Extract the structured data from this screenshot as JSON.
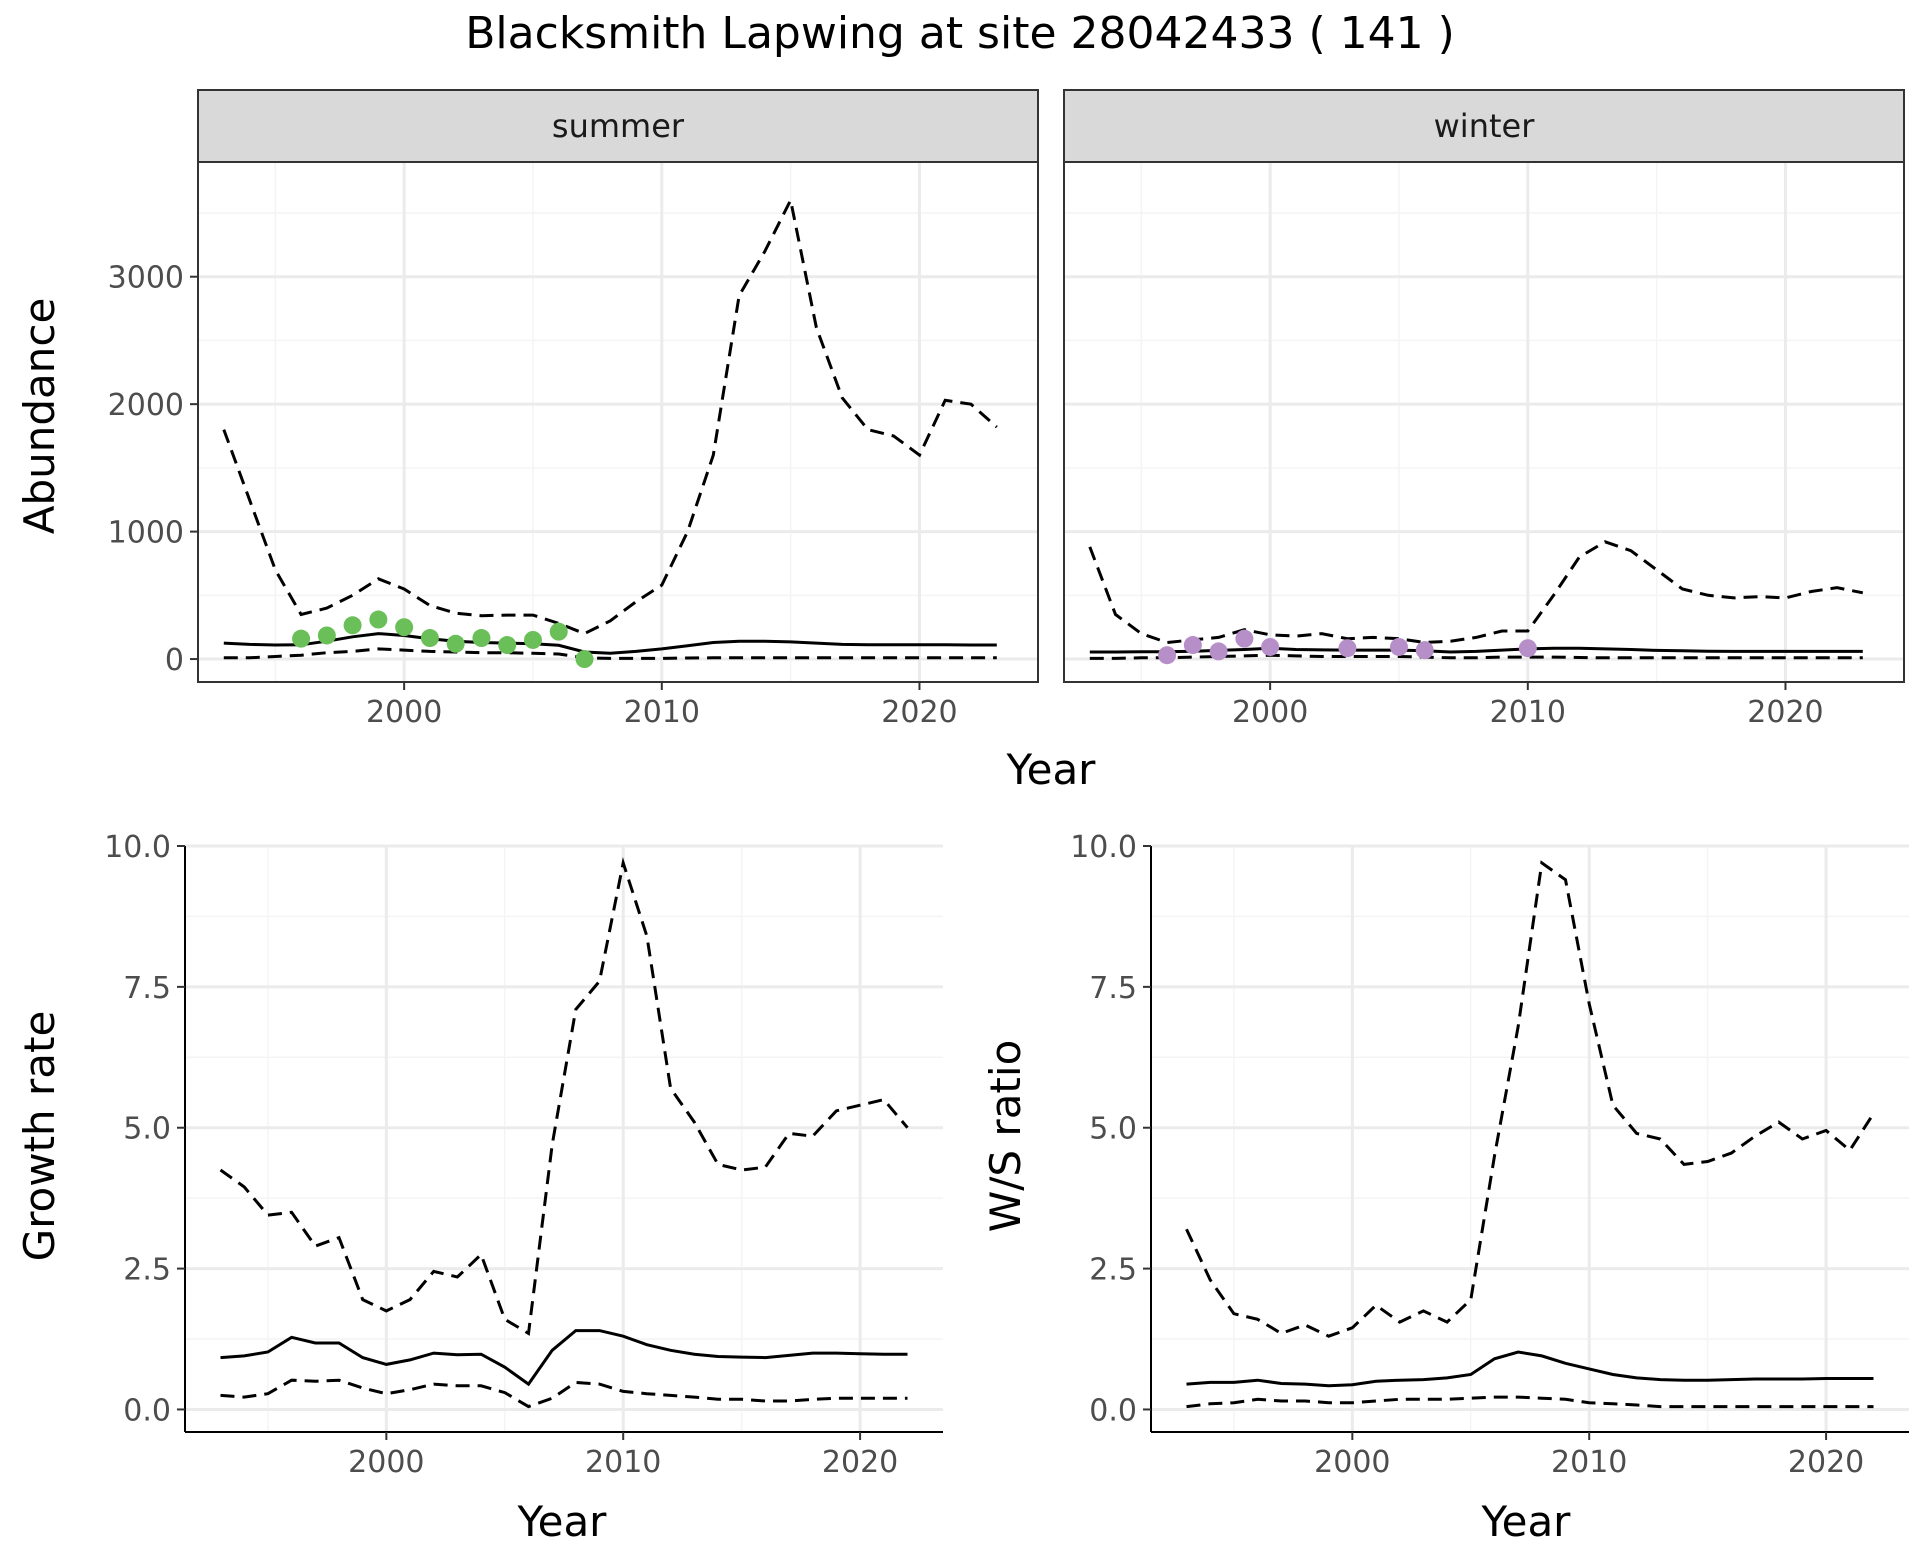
{
  "title": "Blacksmith Lapwing at site 28042433 ( 141 )",
  "colors": {
    "summer_points": "#6abf59",
    "winter_points": "#b68fc9",
    "lines": "#000000"
  },
  "chart_data": [
    {
      "id": "abundance",
      "type": "line",
      "ylabel": "Abundance",
      "xlabel": "Year",
      "xlim": [
        1992,
        2024.6
      ],
      "ylim": [
        -180,
        3900
      ],
      "xticks": [
        2000,
        2010,
        2020
      ],
      "yticks": [
        0,
        1000,
        2000,
        3000
      ],
      "ytick_labels": [
        "0",
        "1000",
        "2000",
        "3000"
      ],
      "facets": [
        {
          "label": "summer",
          "years": [
            1993,
            1994,
            1995,
            1996,
            1997,
            1998,
            1999,
            2000,
            2001,
            2002,
            2003,
            2004,
            2005,
            2006,
            2007,
            2008,
            2009,
            2010,
            2011,
            2012,
            2013,
            2014,
            2015,
            2016,
            2017,
            2018,
            2019,
            2020,
            2021,
            2022,
            2023
          ],
          "mean": [
            125,
            115,
            110,
            112,
            140,
            175,
            200,
            185,
            160,
            140,
            130,
            125,
            120,
            108,
            55,
            45,
            60,
            80,
            105,
            130,
            140,
            140,
            135,
            125,
            115,
            112,
            112,
            112,
            112,
            110,
            110
          ],
          "upper": [
            1800,
            1250,
            700,
            350,
            400,
            500,
            630,
            550,
            420,
            360,
            340,
            345,
            345,
            280,
            200,
            300,
            450,
            580,
            1000,
            1600,
            2850,
            3200,
            3600,
            2600,
            2050,
            1800,
            1750,
            1600,
            2030,
            2000,
            1820
          ],
          "lower": [
            10,
            10,
            20,
            30,
            50,
            60,
            80,
            70,
            60,
            55,
            50,
            50,
            45,
            40,
            10,
            5,
            5,
            5,
            8,
            10,
            10,
            10,
            10,
            10,
            10,
            10,
            10,
            10,
            10,
            10,
            10
          ],
          "obs_years": [
            1996,
            1997,
            1998,
            1999,
            2000,
            2001,
            2002,
            2003,
            2004,
            2005,
            2006,
            2007
          ],
          "obs_values": [
            160,
            185,
            265,
            310,
            250,
            165,
            120,
            165,
            110,
            150,
            215,
            0
          ]
        },
        {
          "label": "winter",
          "years": [
            1993,
            1994,
            1995,
            1996,
            1997,
            1998,
            1999,
            2000,
            2001,
            2002,
            2003,
            2004,
            2005,
            2006,
            2007,
            2008,
            2009,
            2010,
            2011,
            2012,
            2013,
            2014,
            2015,
            2016,
            2017,
            2018,
            2019,
            2020,
            2021,
            2022,
            2023
          ],
          "mean": [
            55,
            55,
            58,
            58,
            62,
            68,
            75,
            85,
            75,
            72,
            70,
            70,
            70,
            65,
            55,
            60,
            70,
            80,
            85,
            85,
            80,
            75,
            68,
            65,
            62,
            60,
            60,
            60,
            60,
            60,
            60
          ],
          "upper": [
            880,
            350,
            200,
            130,
            150,
            170,
            230,
            190,
            180,
            200,
            160,
            170,
            160,
            130,
            140,
            170,
            220,
            220,
            500,
            800,
            920,
            850,
            700,
            550,
            500,
            480,
            490,
            480,
            530,
            560,
            520
          ],
          "lower": [
            5,
            5,
            10,
            10,
            15,
            20,
            25,
            30,
            25,
            20,
            20,
            20,
            20,
            15,
            10,
            10,
            15,
            15,
            15,
            12,
            10,
            10,
            10,
            10,
            10,
            10,
            10,
            10,
            10,
            10,
            10
          ],
          "obs_years": [
            1996,
            1997,
            1998,
            1999,
            2000,
            2003,
            2005,
            2006,
            2010
          ],
          "obs_values": [
            30,
            110,
            60,
            160,
            95,
            85,
            95,
            70,
            85
          ]
        }
      ]
    },
    {
      "id": "growth",
      "type": "line",
      "ylabel": "Growth rate",
      "xlabel": "Year",
      "xlim": [
        1991.5,
        2023.5
      ],
      "ylim": [
        -0.4,
        10.0
      ],
      "xticks": [
        2000,
        2010,
        2020
      ],
      "yticks": [
        0,
        2.5,
        5,
        7.5,
        10
      ],
      "ytick_labels": [
        "0.0",
        "2.5",
        "5.0",
        "7.5",
        "10.0"
      ],
      "years": [
        1993,
        1994,
        1995,
        1996,
        1997,
        1998,
        1999,
        2000,
        2001,
        2002,
        2003,
        2004,
        2005,
        2006,
        2007,
        2008,
        2009,
        2010,
        2011,
        2012,
        2013,
        2014,
        2015,
        2016,
        2017,
        2018,
        2019,
        2020,
        2021,
        2022
      ],
      "mean": [
        0.92,
        0.95,
        1.02,
        1.28,
        1.18,
        1.18,
        0.92,
        0.8,
        0.88,
        1.0,
        0.97,
        0.98,
        0.75,
        0.45,
        1.05,
        1.4,
        1.4,
        1.3,
        1.15,
        1.05,
        0.98,
        0.94,
        0.93,
        0.92,
        0.96,
        1.0,
        1.0,
        0.99,
        0.98,
        0.98
      ],
      "upper": [
        4.25,
        3.95,
        3.45,
        3.5,
        2.9,
        3.05,
        1.95,
        1.75,
        1.95,
        2.45,
        2.35,
        2.75,
        1.6,
        1.35,
        4.7,
        7.1,
        7.6,
        9.7,
        8.4,
        5.7,
        5.1,
        4.35,
        4.25,
        4.3,
        4.9,
        4.85,
        5.3,
        5.4,
        5.5,
        5.0
      ],
      "lower": [
        0.25,
        0.22,
        0.28,
        0.52,
        0.5,
        0.52,
        0.38,
        0.28,
        0.35,
        0.45,
        0.42,
        0.42,
        0.3,
        0.05,
        0.2,
        0.48,
        0.45,
        0.32,
        0.28,
        0.25,
        0.22,
        0.18,
        0.18,
        0.15,
        0.15,
        0.18,
        0.2,
        0.2,
        0.2,
        0.2
      ]
    },
    {
      "id": "ws_ratio",
      "type": "line",
      "ylabel": "W/S ratio",
      "xlabel": "Year",
      "xlim": [
        1991.5,
        2023.5
      ],
      "ylim": [
        -0.4,
        10.0
      ],
      "xticks": [
        2000,
        2010,
        2020
      ],
      "yticks": [
        0,
        2.5,
        5,
        7.5,
        10
      ],
      "ytick_labels": [
        "0.0",
        "2.5",
        "5.0",
        "7.5",
        "10.0"
      ],
      "years": [
        1993,
        1994,
        1995,
        1996,
        1997,
        1998,
        1999,
        2000,
        2001,
        2002,
        2003,
        2004,
        2005,
        2006,
        2007,
        2008,
        2009,
        2010,
        2011,
        2012,
        2013,
        2014,
        2015,
        2016,
        2017,
        2018,
        2019,
        2020,
        2021,
        2022
      ],
      "mean": [
        0.45,
        0.48,
        0.48,
        0.52,
        0.46,
        0.45,
        0.42,
        0.44,
        0.5,
        0.52,
        0.53,
        0.56,
        0.62,
        0.9,
        1.02,
        0.95,
        0.82,
        0.72,
        0.62,
        0.56,
        0.53,
        0.52,
        0.52,
        0.53,
        0.54,
        0.54,
        0.54,
        0.55,
        0.55,
        0.55
      ],
      "upper": [
        3.2,
        2.3,
        1.7,
        1.6,
        1.35,
        1.5,
        1.3,
        1.45,
        1.85,
        1.55,
        1.75,
        1.55,
        1.95,
        4.5,
        6.8,
        9.7,
        9.4,
        7.2,
        5.4,
        4.9,
        4.8,
        4.35,
        4.4,
        4.55,
        4.85,
        5.1,
        4.8,
        4.95,
        4.6,
        5.25
      ],
      "lower": [
        0.05,
        0.1,
        0.12,
        0.18,
        0.15,
        0.15,
        0.12,
        0.12,
        0.15,
        0.18,
        0.18,
        0.18,
        0.2,
        0.22,
        0.22,
        0.2,
        0.18,
        0.12,
        0.1,
        0.08,
        0.05,
        0.05,
        0.05,
        0.05,
        0.05,
        0.05,
        0.05,
        0.05,
        0.05,
        0.05
      ]
    }
  ]
}
